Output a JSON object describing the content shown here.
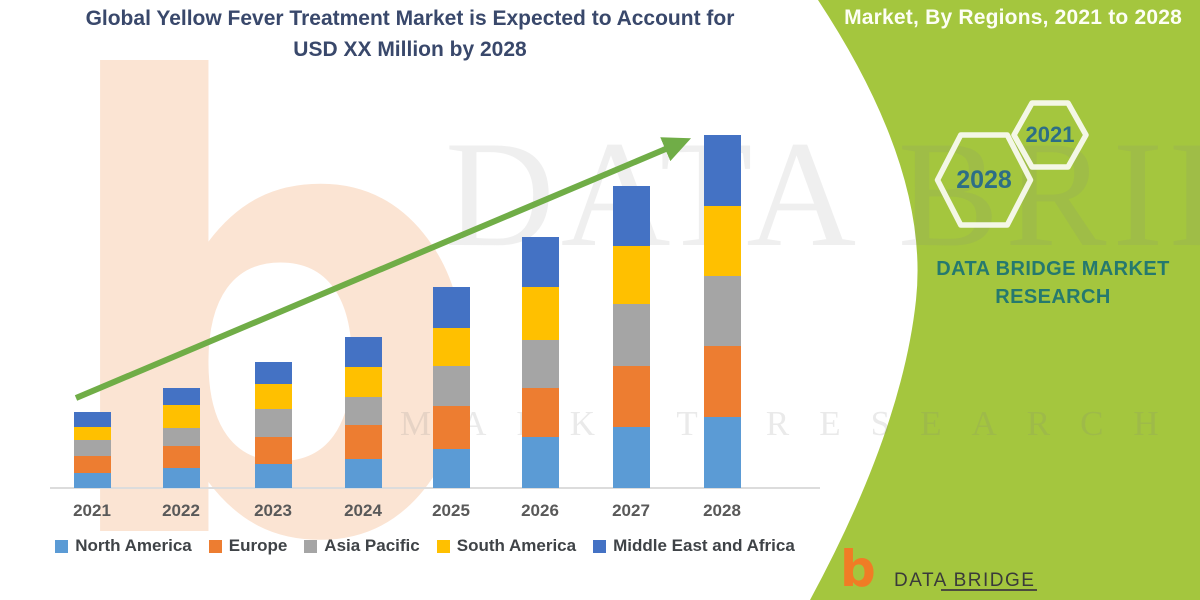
{
  "title": {
    "line1": "Global Yellow Fever Treatment Market is Expected to Account for",
    "line2": "USD XX Million by 2028"
  },
  "side_panel": {
    "heading": "Market, By Regions, 2021 to 2028",
    "hexagons": [
      {
        "label": "2021"
      },
      {
        "label": "2028"
      }
    ],
    "brand_line1": "DATA BRIDGE MARKET",
    "brand_line2": "RESEARCH"
  },
  "watermarks": {
    "letter_b": "b",
    "big_text": "DATA BRIDGE",
    "spaced_text": "MARKET RESEARCH"
  },
  "footer_logo": {
    "b": "b",
    "brand": "DATA BRIDGE"
  },
  "chart_data": {
    "type": "bar",
    "stacked": true,
    "title": "Global Yellow Fever Treatment Market is Expected to Account for USD XX Million by 2028",
    "xlabel": "",
    "ylabel": "",
    "y_axis_labels_visible": false,
    "values_note": "Values unlabeled in source (USD XX Million); series values are relative heights estimated from pixels",
    "legend_position": "bottom",
    "categories": [
      "2021",
      "2022",
      "2023",
      "2024",
      "2025",
      "2026",
      "2027",
      "2028"
    ],
    "series": [
      {
        "name": "North America",
        "color": "#5B9BD5",
        "values": [
          15,
          20,
          24,
          29,
          39,
          51,
          61,
          71
        ]
      },
      {
        "name": "Europe",
        "color": "#ED7D31",
        "values": [
          17,
          22,
          27,
          34,
          43,
          49,
          61,
          71
        ]
      },
      {
        "name": "Asia Pacific",
        "color": "#A5A5A5",
        "values": [
          16,
          18,
          28,
          28,
          40,
          48,
          62,
          70
        ]
      },
      {
        "name": "South America",
        "color": "#FFC000",
        "values": [
          13,
          23,
          25,
          30,
          38,
          53,
          58,
          70
        ]
      },
      {
        "name": "Middle East and Africa",
        "color": "#4472C4",
        "values": [
          15,
          17,
          22,
          30,
          41,
          50,
          60,
          71
        ]
      }
    ],
    "totals": [
      76,
      100,
      126,
      151,
      201,
      251,
      302,
      353
    ],
    "trend_arrow": {
      "from_category": "2021",
      "to_category": "2028",
      "color": "#70AD47"
    }
  },
  "theme": {
    "green_panel": "#A4C63E",
    "title_text": "#39486B",
    "axis_label": "#595959",
    "legend_text": "#3F4347",
    "axis_line": "#DCDCDC",
    "arrow": "#70AD47",
    "hex_stroke": "#F4F7E6",
    "hex_text": "#2D6E86",
    "brand_teal": "#25796E",
    "watermark_peach": "#FBE4D3",
    "watermark_gray": "rgba(128,128,128,0.13)",
    "watermark_gray2": "rgba(128,128,128,0.17)",
    "footer_orange": "#F07C25",
    "footer_text": "#3A3A3A"
  }
}
